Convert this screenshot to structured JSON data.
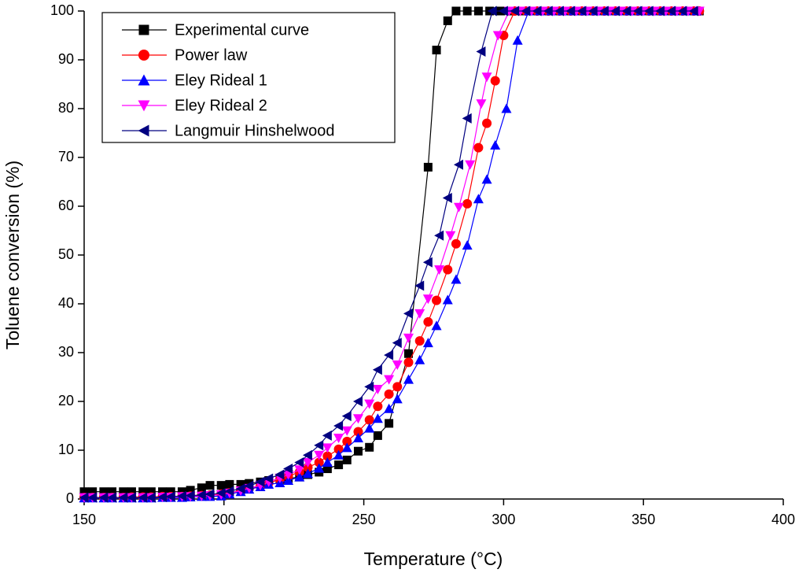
{
  "chart_data": {
    "type": "line",
    "x_label": "Temperature (°C)",
    "y_label": "Toluene conversion (%)",
    "xlim": [
      150,
      400
    ],
    "ylim": [
      0,
      100
    ],
    "xticks": [
      150,
      200,
      250,
      300,
      350,
      400
    ],
    "yticks": [
      0,
      10,
      20,
      30,
      40,
      50,
      60,
      70,
      80,
      90,
      100
    ],
    "legend_position": "upper-left",
    "series": [
      {
        "name": "Experimental curve",
        "color": "#000000",
        "marker": "square",
        "x": [
          150,
          153,
          157,
          160,
          164,
          167,
          171,
          174,
          178,
          181,
          185,
          188,
          192,
          195,
          199,
          202,
          206,
          209,
          213,
          216,
          220,
          223,
          227,
          230,
          234,
          237,
          241,
          244,
          248,
          252,
          255,
          259,
          266,
          273,
          276,
          280,
          283,
          287,
          291,
          295,
          299,
          303,
          307,
          311,
          315,
          319,
          323,
          327,
          331,
          335,
          339,
          343,
          347,
          351,
          355,
          359,
          363,
          367,
          370
        ],
        "values": [
          1.5,
          1.5,
          1.5,
          1.5,
          1.5,
          1.5,
          1.5,
          1.5,
          1.5,
          1.5,
          1.5,
          1.8,
          2.3,
          2.8,
          2.8,
          3,
          3,
          3.2,
          3.5,
          3.8,
          4,
          4.2,
          4.5,
          5,
          5.5,
          6.2,
          7,
          8,
          9.8,
          10.6,
          13,
          15.5,
          29.8,
          68,
          92,
          98,
          100,
          100,
          100,
          100,
          100,
          100,
          100,
          100,
          100,
          100,
          100,
          100,
          100,
          100,
          100,
          100,
          100,
          100,
          100,
          100,
          100,
          100,
          100
        ]
      },
      {
        "name": "Power law",
        "color": "#ff0000",
        "marker": "circle",
        "x": [
          150,
          153,
          157,
          160,
          164,
          167,
          171,
          174,
          178,
          181,
          185,
          188,
          192,
          195,
          199,
          202,
          206,
          209,
          213,
          216,
          220,
          223,
          227,
          230,
          234,
          237,
          241,
          244,
          248,
          252,
          255,
          259,
          262,
          266,
          270,
          273,
          276,
          280,
          283,
          287,
          291,
          294,
          297,
          300,
          304,
          308,
          312,
          316,
          320,
          324,
          328,
          332,
          336,
          340,
          344,
          348,
          352,
          356,
          360,
          364,
          368,
          370
        ],
        "values": [
          0.3,
          0.3,
          0.3,
          0.3,
          0.3,
          0.4,
          0.4,
          0.4,
          0.5,
          0.5,
          0.5,
          0.6,
          0.7,
          0.8,
          1.0,
          1.3,
          1.7,
          2.2,
          2.6,
          3.3,
          4,
          4.7,
          5.5,
          6.5,
          7.5,
          8.8,
          10.2,
          11.8,
          13.8,
          16.2,
          19,
          21.5,
          23,
          28,
          32.4,
          36.3,
          40.7,
          47,
          52.3,
          60.5,
          72,
          77,
          85.7,
          95,
          100,
          100,
          100,
          100,
          100,
          100,
          100,
          100,
          100,
          100,
          100,
          100,
          100,
          100,
          100,
          100,
          100,
          100
        ]
      },
      {
        "name": "Eley Rideal 1",
        "color": "#0000ff",
        "marker": "triangle-up",
        "x": [
          150,
          153,
          157,
          160,
          164,
          167,
          171,
          174,
          178,
          181,
          185,
          188,
          192,
          195,
          199,
          202,
          206,
          209,
          213,
          216,
          220,
          223,
          227,
          230,
          234,
          237,
          241,
          244,
          248,
          252,
          255,
          259,
          262,
          266,
          270,
          273,
          276,
          280,
          283,
          287,
          291,
          294,
          297,
          301,
          305,
          309,
          313,
          317,
          321,
          325,
          329,
          333,
          337,
          341,
          345,
          349,
          353,
          357,
          361,
          365,
          369
        ],
        "values": [
          0.2,
          0.2,
          0.2,
          0.2,
          0.2,
          0.2,
          0.2,
          0.2,
          0.3,
          0.3,
          0.3,
          0.4,
          0.5,
          0.5,
          0.6,
          1,
          1.5,
          2,
          2.5,
          3,
          3.3,
          3.8,
          4.5,
          5.2,
          6.3,
          7.5,
          9,
          10.5,
          12.5,
          14.5,
          16.5,
          18.5,
          20.5,
          24.5,
          28.5,
          32,
          35.5,
          40.8,
          45,
          52,
          61.5,
          65.5,
          72.5,
          80,
          94,
          100,
          100,
          100,
          100,
          100,
          100,
          100,
          100,
          100,
          100,
          100,
          100,
          100,
          100,
          100,
          100
        ]
      },
      {
        "name": "Eley Rideal 2",
        "color": "#ff00ff",
        "marker": "triangle-down",
        "x": [
          150,
          153,
          157,
          160,
          164,
          167,
          171,
          174,
          178,
          181,
          185,
          188,
          192,
          195,
          199,
          202,
          206,
          209,
          213,
          216,
          220,
          223,
          227,
          230,
          234,
          237,
          241,
          244,
          248,
          252,
          255,
          259,
          262,
          266,
          270,
          273,
          277,
          281,
          284,
          288,
          292,
          294,
          298,
          302,
          306,
          310,
          314,
          318,
          322,
          326,
          330,
          334,
          338,
          342,
          346,
          350,
          354,
          358,
          362,
          366,
          370
        ],
        "values": [
          0.3,
          0.3,
          0.3,
          0.3,
          0.3,
          0.3,
          0.3,
          0.3,
          0.4,
          0.4,
          0.5,
          0.5,
          0.6,
          0.7,
          0.9,
          1.2,
          1.7,
          2.2,
          2.8,
          3.5,
          4.3,
          5,
          6,
          7.5,
          9,
          10.5,
          12.5,
          14,
          16.5,
          19.5,
          22.5,
          24.5,
          27.5,
          33,
          38,
          41,
          47,
          54,
          59.8,
          68.5,
          81,
          86.5,
          95,
          100,
          100,
          100,
          100,
          100,
          100,
          100,
          100,
          100,
          100,
          100,
          100,
          100,
          100,
          100,
          100,
          100,
          100
        ]
      },
      {
        "name": "Langmuir Hinshelwood",
        "color": "#000080",
        "marker": "triangle-left",
        "x": [
          150,
          153,
          157,
          160,
          164,
          167,
          171,
          174,
          178,
          181,
          185,
          188,
          192,
          195,
          199,
          202,
          206,
          209,
          213,
          216,
          220,
          223,
          227,
          230,
          234,
          237,
          241,
          244,
          248,
          252,
          255,
          259,
          262,
          266,
          270,
          273,
          277,
          280,
          284,
          287,
          292,
          296,
          300,
          304,
          308,
          312,
          316,
          320,
          324,
          328,
          332,
          336,
          340,
          344,
          348,
          352,
          356,
          360,
          364,
          368
        ],
        "values": [
          0.3,
          0.3,
          0.3,
          0.3,
          0.3,
          0.3,
          0.3,
          0.3,
          0.4,
          0.5,
          0.6,
          0.7,
          0.8,
          1.0,
          1.2,
          1.6,
          2.1,
          2.7,
          3.5,
          4.2,
          5,
          6.2,
          7.5,
          9,
          11,
          13,
          15,
          17,
          20,
          23,
          26.5,
          29.5,
          32,
          38,
          43.7,
          48.5,
          54,
          61.7,
          68.5,
          78,
          91.7,
          100,
          100,
          100,
          100,
          100,
          100,
          100,
          100,
          100,
          100,
          100,
          100,
          100,
          100,
          100,
          100,
          100,
          100,
          100
        ]
      }
    ]
  }
}
